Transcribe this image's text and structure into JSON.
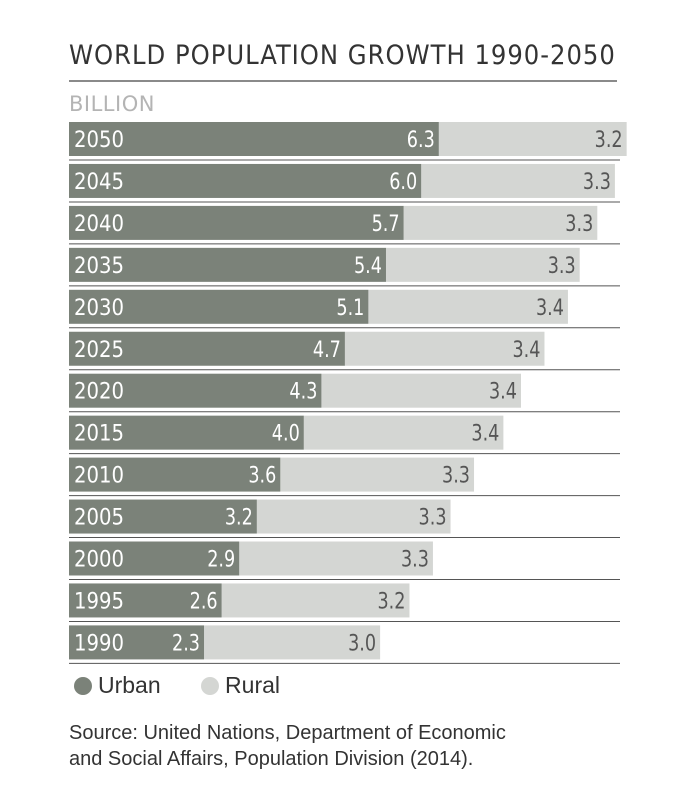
{
  "colors": {
    "urban": "#7b8279",
    "rural": "#d4d6d3",
    "rule": "#555555"
  },
  "chart_data": {
    "type": "bar",
    "orientation": "horizontal",
    "stacked": true,
    "title": "WORLD POPULATION GROWTH 1990-2050",
    "unit_label": "BILLION",
    "categories": [
      "2050",
      "2045",
      "2040",
      "2035",
      "2030",
      "2025",
      "2020",
      "2015",
      "2010",
      "2005",
      "2000",
      "1995",
      "1990"
    ],
    "series": [
      {
        "name": "Urban",
        "values": [
          6.3,
          6.0,
          5.7,
          5.4,
          5.1,
          4.7,
          4.3,
          4.0,
          3.6,
          3.2,
          2.9,
          2.6,
          2.3
        ]
      },
      {
        "name": "Rural",
        "values": [
          3.2,
          3.3,
          3.3,
          3.3,
          3.4,
          3.4,
          3.4,
          3.4,
          3.3,
          3.3,
          3.3,
          3.2,
          3.0
        ]
      }
    ],
    "labels": {
      "urban": [
        "6.3",
        "6.0",
        "5.7",
        "5.4",
        "5.1",
        "4.7",
        "4.3",
        "4.0",
        "3.6",
        "3.2",
        "2.9",
        "2.6",
        "2.3"
      ],
      "rural": [
        "3.2",
        "3.3",
        "3.3",
        "3.3",
        "3.4",
        "3.4",
        "3.4",
        "3.4",
        "3.3",
        "3.3",
        "3.3",
        "3.2",
        "3.0"
      ]
    },
    "legend_position": "bottom-left",
    "grid": false
  },
  "legend": {
    "urban_label": "Urban",
    "rural_label": "Rural"
  },
  "source": {
    "line1": "Source: United Nations, Department of Economic",
    "line2": "and Social Affairs, Population Division (2014)."
  }
}
